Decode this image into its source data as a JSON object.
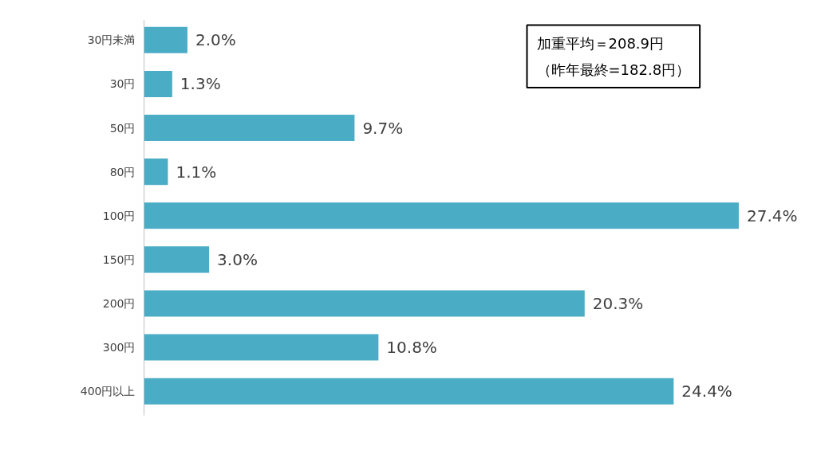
{
  "chart_data": {
    "type": "bar",
    "orientation": "horizontal",
    "categories": [
      "30円未満",
      "30円",
      "50円",
      "80円",
      "100円",
      "150円",
      "200円",
      "300円",
      "400円以上"
    ],
    "values": [
      2.0,
      1.3,
      9.7,
      1.1,
      27.4,
      3.0,
      20.3,
      10.8,
      24.4
    ],
    "value_labels": [
      "2.0%",
      "1.3%",
      "9.7%",
      "1.1%",
      "27.4%",
      "3.0%",
      "20.3%",
      "10.8%",
      "24.4%"
    ],
    "color": "#4bacc6",
    "annotations": [
      "加重平均＝208.9円",
      "（昨年最終=182.8円）"
    ],
    "tick_labels": "y",
    "grid": false
  }
}
